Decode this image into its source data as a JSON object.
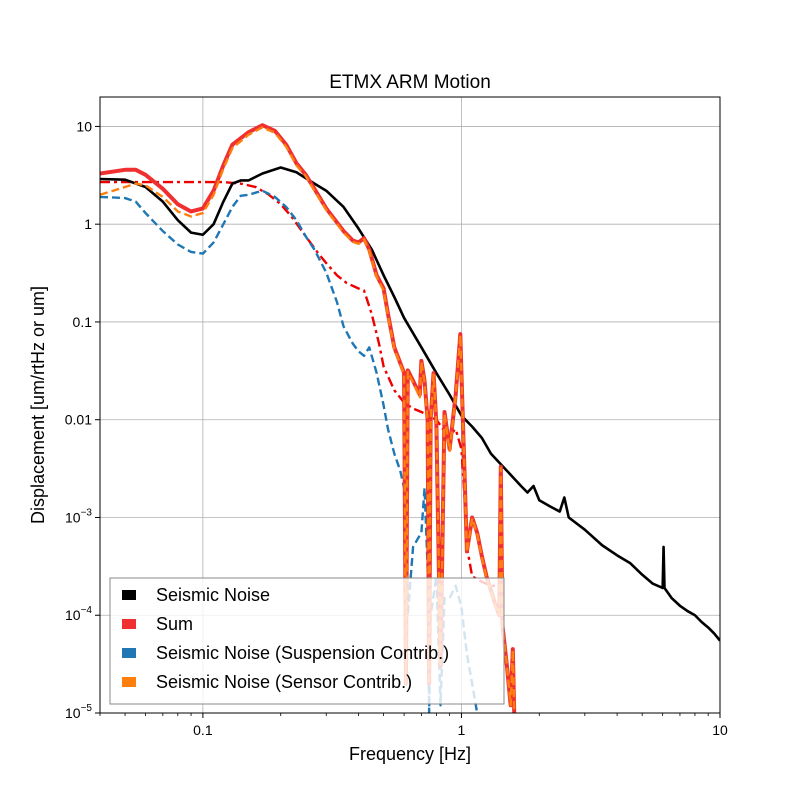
{
  "chart_data": {
    "type": "line",
    "title": "ETMX ARM Motion",
    "xlabel": "Frequency [Hz]",
    "ylabel": "Displacement [um/rtHz or um]",
    "x_scale": "log",
    "y_scale": "log",
    "xlim": [
      0.04,
      10
    ],
    "ylim": [
      1e-05,
      20
    ],
    "grid": true,
    "legend_position": "bottom-left",
    "x_ticks": [
      {
        "value": 0.1,
        "label": "0.1"
      },
      {
        "value": 1,
        "label": "1"
      },
      {
        "value": 10,
        "label": "10"
      }
    ],
    "y_ticks": [
      {
        "value": 1e-05,
        "base": "10",
        "exp": "−5"
      },
      {
        "value": 0.0001,
        "base": "10",
        "exp": "−4"
      },
      {
        "value": 0.001,
        "base": "10",
        "exp": "−3"
      },
      {
        "value": 0.01,
        "base": "0.01",
        "exp": ""
      },
      {
        "value": 0.1,
        "base": "0.1",
        "exp": ""
      },
      {
        "value": 1,
        "base": "1",
        "exp": ""
      },
      {
        "value": 10,
        "base": "10",
        "exp": ""
      }
    ],
    "series": [
      {
        "name": "Seismic Noise",
        "color": "#000000",
        "style": "solid",
        "legend_marker": "square",
        "points": [
          [
            0.04,
            2.9
          ],
          [
            0.05,
            2.85
          ],
          [
            0.06,
            2.4
          ],
          [
            0.07,
            1.7
          ],
          [
            0.08,
            1.1
          ],
          [
            0.09,
            0.82
          ],
          [
            0.1,
            0.78
          ],
          [
            0.11,
            1.0
          ],
          [
            0.12,
            1.7
          ],
          [
            0.13,
            2.6
          ],
          [
            0.14,
            2.8
          ],
          [
            0.15,
            2.8
          ],
          [
            0.17,
            3.3
          ],
          [
            0.2,
            3.8
          ],
          [
            0.23,
            3.4
          ],
          [
            0.27,
            2.6
          ],
          [
            0.3,
            2.2
          ],
          [
            0.35,
            1.5
          ],
          [
            0.4,
            0.9
          ],
          [
            0.45,
            0.55
          ],
          [
            0.5,
            0.3
          ],
          [
            0.55,
            0.18
          ],
          [
            0.6,
            0.11
          ],
          [
            0.7,
            0.055
          ],
          [
            0.8,
            0.03
          ],
          [
            0.9,
            0.018
          ],
          [
            1.0,
            0.011
          ],
          [
            1.1,
            0.0085
          ],
          [
            1.2,
            0.0065
          ],
          [
            1.3,
            0.0045
          ],
          [
            1.5,
            0.003
          ],
          [
            1.7,
            0.0021
          ],
          [
            1.8,
            0.0018
          ],
          [
            1.9,
            0.0021
          ],
          [
            2.0,
            0.0015
          ],
          [
            2.2,
            0.0013
          ],
          [
            2.4,
            0.00115
          ],
          [
            2.5,
            0.0016
          ],
          [
            2.6,
            0.001
          ],
          [
            3.0,
            0.00075
          ],
          [
            3.5,
            0.00052
          ],
          [
            4.0,
            0.00041
          ],
          [
            4.5,
            0.00034
          ],
          [
            5.0,
            0.00026
          ],
          [
            5.5,
            0.00021
          ],
          [
            6.0,
            0.00019
          ],
          [
            6.05,
            0.0005
          ],
          [
            6.1,
            0.00019
          ],
          [
            6.5,
            0.00015
          ],
          [
            7.0,
            0.000125
          ],
          [
            7.5,
            0.00011
          ],
          [
            8.0,
            0.0001
          ],
          [
            8.5,
            8.5e-05
          ],
          [
            9.0,
            7.5e-05
          ],
          [
            9.5,
            6.5e-05
          ],
          [
            10.0,
            5.5e-05
          ]
        ]
      },
      {
        "name": "Sum",
        "color": "#f03030",
        "style": "solid",
        "legend_marker": "square",
        "points": [
          [
            0.04,
            3.3
          ],
          [
            0.05,
            3.6
          ],
          [
            0.055,
            3.6
          ],
          [
            0.06,
            3.2
          ],
          [
            0.07,
            2.3
          ],
          [
            0.08,
            1.6
          ],
          [
            0.09,
            1.35
          ],
          [
            0.1,
            1.45
          ],
          [
            0.11,
            2.2
          ],
          [
            0.12,
            4.0
          ],
          [
            0.13,
            6.5
          ],
          [
            0.15,
            8.7
          ],
          [
            0.17,
            10.3
          ],
          [
            0.19,
            9.0
          ],
          [
            0.21,
            6.5
          ],
          [
            0.23,
            4.2
          ],
          [
            0.25,
            3.2
          ],
          [
            0.27,
            2.3
          ],
          [
            0.3,
            1.45
          ],
          [
            0.35,
            0.85
          ],
          [
            0.38,
            0.68
          ],
          [
            0.4,
            0.65
          ],
          [
            0.42,
            0.72
          ],
          [
            0.44,
            0.55
          ],
          [
            0.47,
            0.3
          ],
          [
            0.5,
            0.22
          ],
          [
            0.52,
            0.12
          ],
          [
            0.55,
            0.055
          ],
          [
            0.58,
            0.038
          ],
          [
            0.6,
            0.03
          ],
          [
            0.61,
            2e-05
          ],
          [
            0.62,
            0.032
          ],
          [
            0.65,
            0.025
          ],
          [
            0.69,
            0.018
          ],
          [
            0.7,
            0.04
          ],
          [
            0.72,
            0.025
          ],
          [
            0.74,
            0.01
          ],
          [
            0.75,
            2e-05
          ],
          [
            0.76,
            0.01
          ],
          [
            0.78,
            0.03
          ],
          [
            0.8,
            0.009
          ],
          [
            0.83,
            3e-05
          ],
          [
            0.86,
            0.012
          ],
          [
            0.9,
            0.005
          ],
          [
            0.95,
            0.018
          ],
          [
            0.99,
            0.075
          ],
          [
            1.0,
            0.03
          ],
          [
            1.05,
            0.00045
          ],
          [
            1.1,
            0.001
          ],
          [
            1.15,
            0.0007
          ],
          [
            1.2,
            0.0004
          ],
          [
            1.25,
            0.00025
          ],
          [
            1.3,
            0.00018
          ],
          [
            1.35,
            0.00013
          ],
          [
            1.4,
            0.0001
          ],
          [
            1.42,
            0.0033
          ],
          [
            1.44,
            8e-05
          ],
          [
            1.5,
            3e-05
          ],
          [
            1.55,
            1.2e-05
          ],
          [
            1.58,
            4.5e-05
          ],
          [
            1.6,
            1e-05
          ]
        ]
      },
      {
        "name": "Seismic Noise (Suspension Contrib.)",
        "color": "#1f77b4",
        "style": "dashed",
        "legend_marker": "square",
        "points": [
          [
            0.04,
            1.9
          ],
          [
            0.05,
            1.85
          ],
          [
            0.055,
            1.7
          ],
          [
            0.06,
            1.3
          ],
          [
            0.07,
            0.85
          ],
          [
            0.08,
            0.62
          ],
          [
            0.09,
            0.52
          ],
          [
            0.1,
            0.5
          ],
          [
            0.11,
            0.65
          ],
          [
            0.12,
            1.0
          ],
          [
            0.13,
            1.5
          ],
          [
            0.14,
            1.95
          ],
          [
            0.15,
            2.0
          ],
          [
            0.17,
            2.2
          ],
          [
            0.19,
            1.9
          ],
          [
            0.21,
            1.5
          ],
          [
            0.23,
            1.1
          ],
          [
            0.25,
            0.75
          ],
          [
            0.27,
            0.55
          ],
          [
            0.3,
            0.32
          ],
          [
            0.33,
            0.16
          ],
          [
            0.35,
            0.09
          ],
          [
            0.38,
            0.06
          ],
          [
            0.4,
            0.05
          ],
          [
            0.42,
            0.045
          ],
          [
            0.44,
            0.055
          ],
          [
            0.47,
            0.03
          ],
          [
            0.5,
            0.014
          ],
          [
            0.52,
            0.008
          ],
          [
            0.55,
            0.0045
          ],
          [
            0.58,
            0.003
          ],
          [
            0.6,
            0.002
          ],
          [
            0.61,
            0.008
          ],
          [
            0.62,
            0.0001
          ],
          [
            0.65,
            0.0005
          ],
          [
            0.7,
            0.0007
          ],
          [
            0.72,
            0.002
          ],
          [
            0.74,
            0.0003
          ],
          [
            0.75,
            1e-05
          ],
          [
            0.76,
            0.0001
          ],
          [
            0.8,
            0.00025
          ],
          [
            0.83,
            1.2e-05
          ],
          [
            0.86,
            0.00015
          ],
          [
            0.9,
            0.00015
          ],
          [
            0.95,
            0.0002
          ],
          [
            1.0,
            0.00012
          ],
          [
            1.05,
            4e-05
          ],
          [
            1.1,
            2e-05
          ],
          [
            1.15,
            1e-05
          ]
        ]
      },
      {
        "name": "Seismic Noise (Sensor Contrib.)",
        "color": "#ff7f0e",
        "style": "dashed",
        "legend_marker": "square",
        "points": [
          [
            0.04,
            2.0
          ],
          [
            0.05,
            2.4
          ],
          [
            0.055,
            2.6
          ],
          [
            0.06,
            2.5
          ],
          [
            0.07,
            1.9
          ],
          [
            0.08,
            1.35
          ],
          [
            0.09,
            1.2
          ],
          [
            0.1,
            1.3
          ],
          [
            0.11,
            2.0
          ],
          [
            0.12,
            3.7
          ],
          [
            0.13,
            6.0
          ],
          [
            0.15,
            8.2
          ],
          [
            0.17,
            9.8
          ],
          [
            0.19,
            8.6
          ],
          [
            0.21,
            6.2
          ],
          [
            0.23,
            4.0
          ],
          [
            0.25,
            3.1
          ],
          [
            0.27,
            2.2
          ],
          [
            0.3,
            1.4
          ],
          [
            0.35,
            0.82
          ],
          [
            0.38,
            0.66
          ],
          [
            0.4,
            0.63
          ],
          [
            0.42,
            0.7
          ],
          [
            0.44,
            0.53
          ],
          [
            0.47,
            0.29
          ],
          [
            0.5,
            0.21
          ],
          [
            0.52,
            0.115
          ],
          [
            0.55,
            0.053
          ],
          [
            0.58,
            0.037
          ],
          [
            0.6,
            0.029
          ],
          [
            0.61,
            2e-05
          ],
          [
            0.62,
            0.031
          ],
          [
            0.65,
            0.024
          ],
          [
            0.69,
            0.017
          ],
          [
            0.7,
            0.039
          ],
          [
            0.72,
            0.024
          ],
          [
            0.74,
            0.0095
          ],
          [
            0.75,
            2e-05
          ],
          [
            0.76,
            0.0095
          ],
          [
            0.78,
            0.029
          ],
          [
            0.8,
            0.0088
          ],
          [
            0.83,
            3e-05
          ],
          [
            0.86,
            0.0115
          ],
          [
            0.9,
            0.0048
          ],
          [
            0.95,
            0.0175
          ],
          [
            0.99,
            0.073
          ],
          [
            1.0,
            0.029
          ],
          [
            1.05,
            0.00044
          ],
          [
            1.1,
            0.00098
          ],
          [
            1.15,
            0.00068
          ],
          [
            1.2,
            0.00039
          ],
          [
            1.25,
            0.00024
          ],
          [
            1.3,
            0.000175
          ],
          [
            1.35,
            0.000125
          ],
          [
            1.4,
            0.0001
          ],
          [
            1.42,
            0.0032
          ],
          [
            1.44,
            8e-05
          ],
          [
            1.5,
            3e-05
          ],
          [
            1.55,
            1.2e-05
          ],
          [
            1.58,
            4.4e-05
          ],
          [
            1.6,
            1e-05
          ]
        ]
      },
      {
        "name": "",
        "color": "#ee0000",
        "style": "dashdot",
        "legend_marker": "none",
        "points": [
          [
            0.04,
            2.7
          ],
          [
            0.06,
            2.7
          ],
          [
            0.08,
            2.7
          ],
          [
            0.1,
            2.7
          ],
          [
            0.12,
            2.7
          ],
          [
            0.14,
            2.6
          ],
          [
            0.16,
            2.4
          ],
          [
            0.18,
            2.0
          ],
          [
            0.2,
            1.6
          ],
          [
            0.22,
            1.2
          ],
          [
            0.25,
            0.75
          ],
          [
            0.28,
            0.5
          ],
          [
            0.3,
            0.4
          ],
          [
            0.33,
            0.3
          ],
          [
            0.36,
            0.25
          ],
          [
            0.4,
            0.22
          ],
          [
            0.42,
            0.21
          ],
          [
            0.45,
            0.12
          ],
          [
            0.48,
            0.06
          ],
          [
            0.5,
            0.035
          ],
          [
            0.55,
            0.02
          ],
          [
            0.6,
            0.015
          ],
          [
            0.65,
            0.013
          ],
          [
            0.7,
            0.012
          ],
          [
            0.75,
            0.011
          ],
          [
            0.8,
            0.01
          ],
          [
            0.85,
            0.008
          ],
          [
            0.9,
            0.007
          ],
          [
            0.95,
            0.008
          ],
          [
            1.0,
            0.005
          ],
          [
            1.03,
            0.0015
          ],
          [
            1.05,
            0.0005
          ],
          [
            1.1,
            0.00025
          ],
          [
            1.2,
            0.00022
          ],
          [
            1.3,
            0.0002
          ],
          [
            1.4,
            0.0002
          ]
        ]
      }
    ]
  }
}
